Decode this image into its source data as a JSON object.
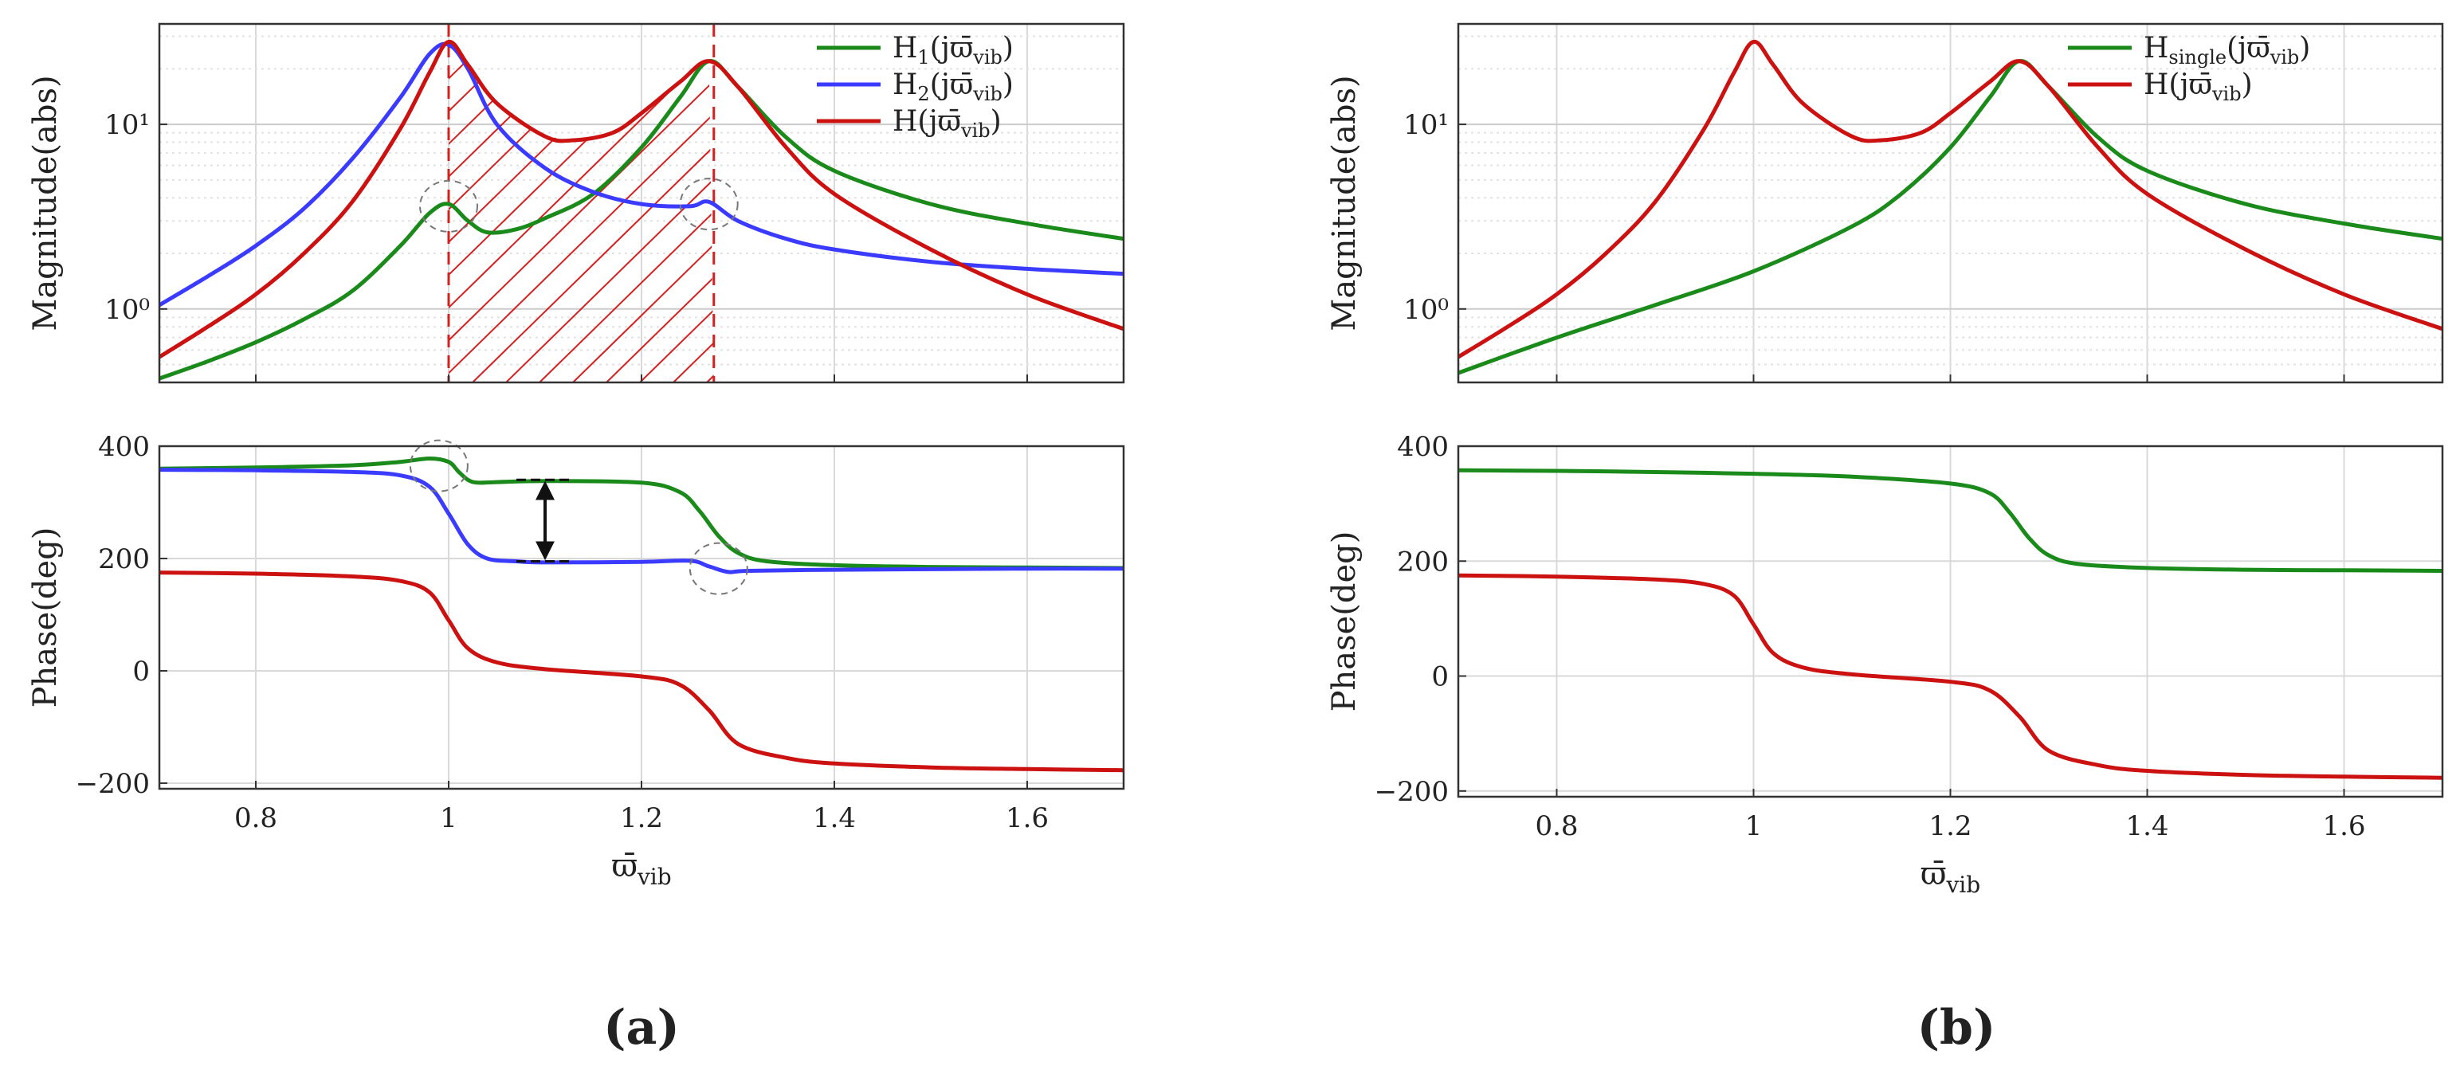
{
  "figure": {
    "panel_labels": [
      "(a)",
      "(b)"
    ]
  },
  "chart_data": [
    {
      "id": "a-mag",
      "type": "line",
      "panel": "a",
      "subplot": "magnitude",
      "xlabel": "",
      "ylabel": "Magnitude(abs)",
      "yscale": "log",
      "xlim": [
        0.7,
        1.7
      ],
      "ylim": [
        0.4,
        35
      ],
      "xticks": [
        0.8,
        1,
        1.2,
        1.4,
        1.6
      ],
      "yticks": [
        {
          "value": 1,
          "label": "10⁰"
        },
        {
          "value": 10,
          "label": "10¹"
        }
      ],
      "legend_position": "top-right",
      "series": [
        {
          "name": "H₁(jϖ̄ᵥᵢᵦ)",
          "legend_parts": [
            "H",
            "1",
            "(j",
            "ϖ̄",
            "vib",
            ")"
          ],
          "color": "#1a8a1a",
          "x": [
            0.7,
            0.75,
            0.8,
            0.85,
            0.9,
            0.95,
            0.98,
            1.0,
            1.02,
            1.04,
            1.07,
            1.1,
            1.15,
            1.2,
            1.24,
            1.27,
            1.3,
            1.35,
            1.4,
            1.5,
            1.6,
            1.7
          ],
          "values": [
            0.42,
            0.52,
            0.66,
            0.88,
            1.25,
            2.2,
            3.3,
            3.7,
            3.0,
            2.6,
            2.7,
            3.1,
            4.2,
            7.5,
            14.0,
            22.0,
            16.0,
            8.5,
            5.6,
            3.7,
            2.9,
            2.4
          ]
        },
        {
          "name": "H₂(jϖ̄ᵥᵢᵦ)",
          "legend_parts": [
            "H",
            "2",
            "(j",
            "ϖ̄",
            "vib",
            ")"
          ],
          "color": "#3b3bff",
          "x": [
            0.7,
            0.75,
            0.8,
            0.85,
            0.9,
            0.95,
            0.98,
            1.0,
            1.02,
            1.05,
            1.1,
            1.15,
            1.2,
            1.25,
            1.27,
            1.3,
            1.35,
            1.4,
            1.5,
            1.6,
            1.7
          ],
          "values": [
            1.05,
            1.5,
            2.2,
            3.5,
            6.5,
            14.0,
            24.0,
            27.0,
            20.0,
            10.0,
            5.8,
            4.3,
            3.7,
            3.6,
            3.8,
            3.0,
            2.4,
            2.1,
            1.8,
            1.65,
            1.55
          ]
        },
        {
          "name": "H(jϖ̄ᵥᵢᵦ)",
          "legend_parts": [
            "H(j",
            "ϖ̄",
            "vib",
            ")"
          ],
          "color": "#cc1111",
          "x": [
            0.7,
            0.75,
            0.8,
            0.85,
            0.9,
            0.95,
            0.98,
            1.0,
            1.02,
            1.05,
            1.1,
            1.13,
            1.17,
            1.2,
            1.24,
            1.27,
            1.3,
            1.35,
            1.4,
            1.5,
            1.6,
            1.7
          ],
          "values": [
            0.55,
            0.8,
            1.2,
            2.0,
            3.8,
            9.5,
            19.0,
            28.0,
            21.0,
            13.0,
            8.6,
            8.2,
            9.0,
            11.5,
            17.0,
            22.0,
            16.0,
            7.5,
            4.2,
            2.1,
            1.2,
            0.78
          ]
        }
      ],
      "annotations": {
        "hatch_x": [
          1.0,
          1.275
        ],
        "dashed_x": [
          1.0,
          1.275
        ],
        "circles": [
          [
            1.0,
            3.6
          ],
          [
            1.27,
            3.7
          ]
        ]
      }
    },
    {
      "id": "a-phase",
      "type": "line",
      "panel": "a",
      "subplot": "phase",
      "xlabel": "ϖ̄vib",
      "ylabel": "Phase(deg)",
      "yscale": "linear",
      "xlim": [
        0.7,
        1.7
      ],
      "ylim": [
        -210,
        400
      ],
      "xticks": [
        0.8,
        1,
        1.2,
        1.4,
        1.6
      ],
      "yticks": [
        {
          "value": 400,
          "label": "400"
        },
        {
          "value": 200,
          "label": "200"
        },
        {
          "value": 0,
          "label": "0"
        },
        {
          "value": -200,
          "label": "−200"
        }
      ],
      "series": [
        {
          "name": "H₁(jϖ̄ᵥᵢᵦ)",
          "color": "#1a8a1a",
          "x": [
            0.7,
            0.8,
            0.9,
            0.95,
            0.98,
            1.0,
            1.01,
            1.02,
            1.03,
            1.05,
            1.1,
            1.2,
            1.24,
            1.26,
            1.28,
            1.3,
            1.33,
            1.4,
            1.5,
            1.6,
            1.7
          ],
          "values": [
            360,
            362,
            366,
            372,
            378,
            372,
            355,
            340,
            335,
            336,
            338,
            335,
            318,
            285,
            240,
            210,
            195,
            188,
            185,
            184,
            183
          ]
        },
        {
          "name": "H₂(jϖ̄ᵥᵢᵦ)",
          "color": "#3b3bff",
          "x": [
            0.7,
            0.8,
            0.9,
            0.95,
            0.98,
            1.0,
            1.02,
            1.04,
            1.07,
            1.1,
            1.2,
            1.25,
            1.27,
            1.29,
            1.31,
            1.4,
            1.5,
            1.6,
            1.7
          ],
          "values": [
            358,
            357,
            354,
            348,
            328,
            280,
            225,
            200,
            195,
            193,
            194,
            196,
            186,
            176,
            178,
            180,
            181,
            182,
            182
          ]
        },
        {
          "name": "H(jϖ̄ᵥᵢᵦ)",
          "color": "#cc1111",
          "x": [
            0.7,
            0.8,
            0.9,
            0.95,
            0.98,
            1.0,
            1.02,
            1.05,
            1.1,
            1.2,
            1.24,
            1.27,
            1.3,
            1.35,
            1.4,
            1.5,
            1.6,
            1.7
          ],
          "values": [
            175,
            173,
            168,
            160,
            140,
            90,
            40,
            15,
            3,
            -10,
            -25,
            -70,
            -130,
            -155,
            -165,
            -172,
            -175,
            -177
          ]
        }
      ],
      "annotations": {
        "arrow_x": 1.1,
        "arrow_y": [
          340,
          195
        ],
        "circles": [
          [
            0.99,
            365
          ],
          [
            1.28,
            182
          ]
        ]
      }
    },
    {
      "id": "b-mag",
      "type": "line",
      "panel": "b",
      "subplot": "magnitude",
      "xlabel": "",
      "ylabel": "Magnitude(abs)",
      "yscale": "log",
      "xlim": [
        0.7,
        1.7
      ],
      "ylim": [
        0.4,
        35
      ],
      "xticks": [
        0.8,
        1,
        1.2,
        1.4,
        1.6
      ],
      "yticks": [
        {
          "value": 1,
          "label": "10⁰"
        },
        {
          "value": 10,
          "label": "10¹"
        }
      ],
      "legend_position": "top-right",
      "series": [
        {
          "name": "Hsingle(jϖ̄ᵥᵢᵦ)",
          "legend_parts": [
            "H",
            "single",
            "(j",
            "ϖ̄",
            "vib",
            ")"
          ],
          "color": "#1a8a1a",
          "x": [
            0.7,
            0.8,
            0.9,
            1.0,
            1.1,
            1.15,
            1.2,
            1.24,
            1.27,
            1.3,
            1.35,
            1.4,
            1.5,
            1.6,
            1.7
          ],
          "values": [
            0.45,
            0.7,
            1.05,
            1.6,
            2.8,
            4.2,
            7.5,
            14.0,
            22.0,
            16.0,
            8.5,
            5.6,
            3.7,
            2.9,
            2.4
          ]
        },
        {
          "name": "H(jϖ̄ᵥᵢᵦ)",
          "legend_parts": [
            "H(j",
            "ϖ̄",
            "vib",
            ")"
          ],
          "color": "#cc1111",
          "x": [
            0.7,
            0.75,
            0.8,
            0.85,
            0.9,
            0.95,
            0.98,
            1.0,
            1.02,
            1.05,
            1.1,
            1.13,
            1.17,
            1.2,
            1.24,
            1.27,
            1.3,
            1.35,
            1.4,
            1.5,
            1.6,
            1.7
          ],
          "values": [
            0.55,
            0.8,
            1.2,
            2.0,
            3.8,
            9.5,
            19.0,
            28.0,
            21.0,
            13.0,
            8.6,
            8.2,
            9.0,
            11.5,
            17.0,
            22.0,
            16.0,
            7.5,
            4.2,
            2.1,
            1.2,
            0.78
          ]
        }
      ]
    },
    {
      "id": "b-phase",
      "type": "line",
      "panel": "b",
      "subplot": "phase",
      "xlabel": "ϖ̄vib",
      "ylabel": "Phase(deg)",
      "yscale": "linear",
      "xlim": [
        0.7,
        1.7
      ],
      "ylim": [
        -210,
        400
      ],
      "xticks": [
        0.8,
        1,
        1.2,
        1.4,
        1.6
      ],
      "yticks": [
        {
          "value": 400,
          "label": "400"
        },
        {
          "value": 200,
          "label": "200"
        },
        {
          "value": 0,
          "label": "0"
        },
        {
          "value": -200,
          "label": "−200"
        }
      ],
      "series": [
        {
          "name": "Hsingle(jϖ̄ᵥᵢᵦ)",
          "color": "#1a8a1a",
          "x": [
            0.7,
            0.8,
            0.9,
            1.0,
            1.1,
            1.2,
            1.24,
            1.26,
            1.28,
            1.3,
            1.33,
            1.4,
            1.5,
            1.6,
            1.7
          ],
          "values": [
            358,
            357,
            355,
            352,
            347,
            335,
            318,
            285,
            240,
            210,
            195,
            188,
            185,
            184,
            183
          ]
        },
        {
          "name": "H(jϖ̄ᵥᵢᵦ)",
          "color": "#cc1111",
          "x": [
            0.7,
            0.8,
            0.9,
            0.95,
            0.98,
            1.0,
            1.02,
            1.05,
            1.1,
            1.2,
            1.24,
            1.27,
            1.3,
            1.35,
            1.4,
            1.5,
            1.6,
            1.7
          ],
          "values": [
            175,
            173,
            168,
            160,
            140,
            90,
            40,
            15,
            3,
            -10,
            -25,
            -70,
            -130,
            -155,
            -165,
            -172,
            -175,
            -177
          ]
        }
      ]
    }
  ]
}
